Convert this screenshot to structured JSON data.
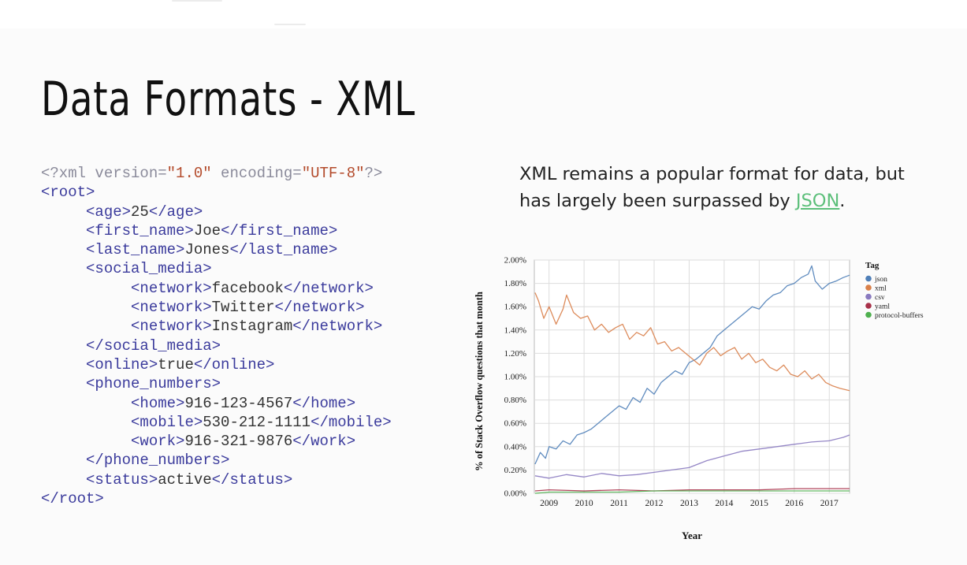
{
  "slide": {
    "title": "Data Formats - XML",
    "caption_before": "XML remains a popular format for data, but has largely been surpassed by ",
    "caption_link": "JSON",
    "caption_after": "."
  },
  "code_lines": [
    [
      {
        "t": "pi",
        "v": "<?xml version="
      },
      {
        "t": "str",
        "v": "\"1.0\""
      },
      {
        "t": "pi",
        "v": " encoding="
      },
      {
        "t": "str",
        "v": "\"UTF-8\""
      },
      {
        "t": "pi",
        "v": "?>"
      }
    ],
    [
      {
        "t": "tag",
        "v": "<root>"
      }
    ],
    [
      {
        "t": "sp",
        "v": "     "
      },
      {
        "t": "tag",
        "v": "<age>"
      },
      {
        "t": "text",
        "v": "25"
      },
      {
        "t": "tag",
        "v": "</age>"
      }
    ],
    [
      {
        "t": "sp",
        "v": "     "
      },
      {
        "t": "tag",
        "v": "<first_name>"
      },
      {
        "t": "text",
        "v": "Joe"
      },
      {
        "t": "tag",
        "v": "</first_name>"
      }
    ],
    [
      {
        "t": "sp",
        "v": "     "
      },
      {
        "t": "tag",
        "v": "<last_name>"
      },
      {
        "t": "text",
        "v": "Jones"
      },
      {
        "t": "tag",
        "v": "</last_name>"
      }
    ],
    [
      {
        "t": "sp",
        "v": "     "
      },
      {
        "t": "tag",
        "v": "<social_media>"
      }
    ],
    [
      {
        "t": "sp",
        "v": "          "
      },
      {
        "t": "tag",
        "v": "<network>"
      },
      {
        "t": "text",
        "v": "facebook"
      },
      {
        "t": "tag",
        "v": "</network>"
      }
    ],
    [
      {
        "t": "sp",
        "v": "          "
      },
      {
        "t": "tag",
        "v": "<network>"
      },
      {
        "t": "text",
        "v": "Twitter"
      },
      {
        "t": "tag",
        "v": "</network>"
      }
    ],
    [
      {
        "t": "sp",
        "v": "          "
      },
      {
        "t": "tag",
        "v": "<network>"
      },
      {
        "t": "text",
        "v": "Instagram"
      },
      {
        "t": "tag",
        "v": "</network>"
      }
    ],
    [
      {
        "t": "sp",
        "v": "     "
      },
      {
        "t": "tag",
        "v": "</social_media>"
      }
    ],
    [
      {
        "t": "sp",
        "v": "     "
      },
      {
        "t": "tag",
        "v": "<online>"
      },
      {
        "t": "text",
        "v": "true"
      },
      {
        "t": "tag",
        "v": "</online>"
      }
    ],
    [
      {
        "t": "sp",
        "v": "     "
      },
      {
        "t": "tag",
        "v": "<phone_numbers>"
      }
    ],
    [
      {
        "t": "sp",
        "v": "          "
      },
      {
        "t": "tag",
        "v": "<home>"
      },
      {
        "t": "text",
        "v": "916-123-4567"
      },
      {
        "t": "tag",
        "v": "</home>"
      }
    ],
    [
      {
        "t": "sp",
        "v": "          "
      },
      {
        "t": "tag",
        "v": "<mobile>"
      },
      {
        "t": "text",
        "v": "530-212-1111"
      },
      {
        "t": "tag",
        "v": "</mobile>"
      }
    ],
    [
      {
        "t": "sp",
        "v": "          "
      },
      {
        "t": "tag",
        "v": "<work>"
      },
      {
        "t": "text",
        "v": "916-321-9876"
      },
      {
        "t": "tag",
        "v": "</work>"
      }
    ],
    [
      {
        "t": "sp",
        "v": "     "
      },
      {
        "t": "tag",
        "v": "</phone_numbers>"
      }
    ],
    [
      {
        "t": "sp",
        "v": "     "
      },
      {
        "t": "tag",
        "v": "<status>"
      },
      {
        "t": "text",
        "v": "active"
      },
      {
        "t": "tag",
        "v": "</status>"
      }
    ],
    [
      {
        "t": "tag",
        "v": "</root>"
      }
    ]
  ],
  "colors": {
    "code_tag": "#3b3b9c",
    "code_string": "#b34a2a",
    "code_pi": "#8a8a9a",
    "link": "#5cbf7a"
  },
  "chart_data": {
    "type": "line",
    "xlabel": "Year",
    "ylabel": "% of Stack Overflow questions that month",
    "xlim": [
      2008.58,
      2017.58
    ],
    "ylim": [
      0,
      2.0
    ],
    "x_ticks": [
      2009,
      2010,
      2011,
      2012,
      2013,
      2014,
      2015,
      2016,
      2017
    ],
    "y_ticks": [
      0,
      0.2,
      0.4,
      0.6,
      0.8,
      1.0,
      1.2,
      1.4,
      1.6,
      1.8,
      2.0
    ],
    "y_tick_labels": [
      "0.00%",
      "0.20%",
      "0.40%",
      "0.60%",
      "0.80%",
      "1.00%",
      "1.20%",
      "1.40%",
      "1.60%",
      "1.80%",
      "2.00%"
    ],
    "grid": true,
    "legend": {
      "title": "Tag",
      "position": "top-right"
    },
    "series": [
      {
        "name": "json",
        "color": "#4f7fb8",
        "x": [
          2008.6,
          2008.75,
          2008.9,
          2009.0,
          2009.2,
          2009.4,
          2009.6,
          2009.8,
          2010.0,
          2010.2,
          2010.4,
          2010.6,
          2010.8,
          2011.0,
          2011.2,
          2011.4,
          2011.6,
          2011.8,
          2012.0,
          2012.2,
          2012.4,
          2012.6,
          2012.8,
          2013.0,
          2013.2,
          2013.4,
          2013.6,
          2013.8,
          2014.0,
          2014.2,
          2014.4,
          2014.6,
          2014.8,
          2015.0,
          2015.2,
          2015.4,
          2015.6,
          2015.8,
          2016.0,
          2016.2,
          2016.4,
          2016.5,
          2016.6,
          2016.8,
          2017.0,
          2017.2,
          2017.4,
          2017.58
        ],
        "y": [
          0.25,
          0.35,
          0.3,
          0.4,
          0.38,
          0.45,
          0.42,
          0.5,
          0.52,
          0.55,
          0.6,
          0.65,
          0.7,
          0.75,
          0.72,
          0.82,
          0.78,
          0.9,
          0.85,
          0.95,
          1.0,
          1.05,
          1.02,
          1.12,
          1.15,
          1.2,
          1.25,
          1.35,
          1.4,
          1.45,
          1.5,
          1.55,
          1.6,
          1.58,
          1.65,
          1.7,
          1.72,
          1.78,
          1.8,
          1.85,
          1.88,
          1.95,
          1.82,
          1.75,
          1.8,
          1.82,
          1.85,
          1.87
        ]
      },
      {
        "name": "xml",
        "color": "#d9804a",
        "x": [
          2008.6,
          2008.7,
          2008.85,
          2009.0,
          2009.2,
          2009.4,
          2009.5,
          2009.7,
          2009.9,
          2010.1,
          2010.3,
          2010.5,
          2010.7,
          2010.9,
          2011.1,
          2011.3,
          2011.5,
          2011.7,
          2011.9,
          2012.1,
          2012.3,
          2012.5,
          2012.7,
          2012.9,
          2013.1,
          2013.3,
          2013.5,
          2013.7,
          2013.9,
          2014.1,
          2014.3,
          2014.5,
          2014.7,
          2014.9,
          2015.1,
          2015.3,
          2015.5,
          2015.7,
          2015.9,
          2016.1,
          2016.3,
          2016.5,
          2016.7,
          2016.9,
          2017.1,
          2017.3,
          2017.58
        ],
        "y": [
          1.72,
          1.65,
          1.5,
          1.6,
          1.45,
          1.58,
          1.7,
          1.55,
          1.5,
          1.52,
          1.4,
          1.45,
          1.38,
          1.42,
          1.45,
          1.32,
          1.38,
          1.35,
          1.42,
          1.28,
          1.3,
          1.22,
          1.25,
          1.2,
          1.15,
          1.1,
          1.2,
          1.25,
          1.18,
          1.22,
          1.25,
          1.15,
          1.2,
          1.12,
          1.15,
          1.08,
          1.05,
          1.1,
          1.02,
          1.0,
          1.05,
          0.98,
          1.02,
          0.95,
          0.92,
          0.9,
          0.88
        ]
      },
      {
        "name": "csv",
        "color": "#8a7ac0",
        "x": [
          2008.6,
          2009.0,
          2009.5,
          2010.0,
          2010.5,
          2011.0,
          2011.5,
          2012.0,
          2012.5,
          2013.0,
          2013.5,
          2014.0,
          2014.5,
          2015.0,
          2015.5,
          2016.0,
          2016.5,
          2017.0,
          2017.4,
          2017.58
        ],
        "y": [
          0.15,
          0.13,
          0.16,
          0.14,
          0.17,
          0.15,
          0.16,
          0.18,
          0.2,
          0.22,
          0.28,
          0.32,
          0.36,
          0.38,
          0.4,
          0.42,
          0.44,
          0.45,
          0.48,
          0.5
        ]
      },
      {
        "name": "yaml",
        "color": "#a8324a",
        "x": [
          2008.6,
          2009.0,
          2010.0,
          2011.0,
          2012.0,
          2013.0,
          2014.0,
          2015.0,
          2016.0,
          2017.0,
          2017.58
        ],
        "y": [
          0.02,
          0.03,
          0.02,
          0.03,
          0.02,
          0.03,
          0.03,
          0.03,
          0.04,
          0.04,
          0.04
        ]
      },
      {
        "name": "protocol-buffers",
        "color": "#4fb04f",
        "x": [
          2008.6,
          2009.0,
          2010.0,
          2011.0,
          2012.0,
          2013.0,
          2014.0,
          2015.0,
          2016.0,
          2017.0,
          2017.58
        ],
        "y": [
          0.0,
          0.01,
          0.01,
          0.01,
          0.02,
          0.02,
          0.02,
          0.02,
          0.02,
          0.02,
          0.02
        ]
      }
    ]
  }
}
